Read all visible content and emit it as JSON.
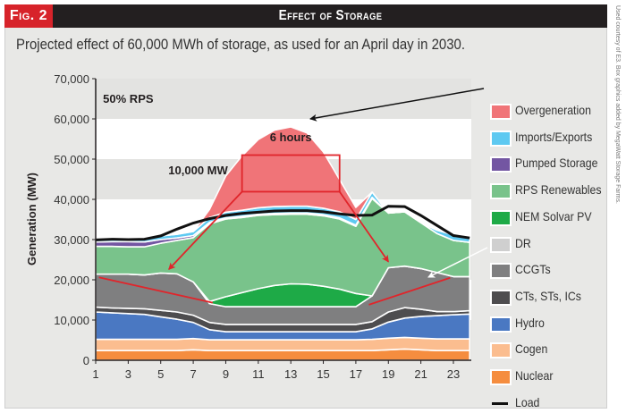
{
  "figure": {
    "tag": "Fig. 2",
    "title": "Effect of Storage",
    "subtitle": "Projected effect of 60,000 MWh of storage, as used for an April day in 2030.",
    "credit": "Used courtesy of E3. Box graphics added by MegaWatt Storage Farms."
  },
  "colors": {
    "header_bg": "#231f20",
    "tag_bg": "#d7232a",
    "panel_bg": "#e8e8e6",
    "annotation_red": "#e0252b"
  },
  "chart_data": {
    "type": "area",
    "stacked": true,
    "title": "Effect of Storage",
    "xlabel": "",
    "ylabel": "Generation (MW)",
    "x": [
      1,
      2,
      3,
      4,
      5,
      6,
      7,
      8,
      9,
      10,
      11,
      12,
      13,
      14,
      15,
      16,
      17,
      18,
      19,
      20,
      21,
      22,
      23,
      24
    ],
    "x_ticks": [
      1,
      3,
      5,
      7,
      9,
      11,
      13,
      15,
      17,
      19,
      21,
      23
    ],
    "y_ticks": [
      0,
      10000,
      20000,
      30000,
      40000,
      50000,
      60000,
      70000
    ],
    "y_tick_labels": [
      "0",
      "10,000",
      "20,000",
      "30,000",
      "40,000",
      "50,000",
      "60,000",
      "70,000"
    ],
    "xlim": [
      1,
      24
    ],
    "ylim": [
      0,
      70000
    ],
    "grid": "alternating horizontal bands every 10,000",
    "legend_position": "right",
    "series": [
      {
        "name": "Nuclear",
        "color": "#f58d3f",
        "values": [
          2400,
          2400,
          2400,
          2400,
          2400,
          2400,
          2600,
          2400,
          2400,
          2400,
          2400,
          2400,
          2400,
          2400,
          2400,
          2400,
          2400,
          2400,
          2600,
          2800,
          2600,
          2400,
          2400,
          2400
        ]
      },
      {
        "name": "Cogen",
        "color": "#fbbd8f",
        "values": [
          2800,
          2800,
          2800,
          2800,
          2800,
          2800,
          2800,
          2700,
          2700,
          2700,
          2700,
          2700,
          2700,
          2700,
          2700,
          2700,
          2700,
          2800,
          2900,
          2900,
          2900,
          2900,
          2900,
          2900
        ]
      },
      {
        "name": "Hydro",
        "color": "#4a78c2",
        "values": [
          6800,
          6600,
          6400,
          6200,
          5600,
          5000,
          4000,
          2500,
          2000,
          2000,
          2000,
          2000,
          2000,
          2000,
          2000,
          2000,
          2000,
          2600,
          4000,
          4800,
          5400,
          5800,
          6000,
          6200
        ]
      },
      {
        "name": "CTs, STs, ICs",
        "color": "#4e4d4f",
        "values": [
          1200,
          1200,
          1300,
          1400,
          1600,
          1800,
          1800,
          1800,
          1800,
          1800,
          1800,
          1800,
          1800,
          1800,
          1800,
          1800,
          1800,
          1800,
          2500,
          2600,
          1800,
          1000,
          800,
          800
        ]
      },
      {
        "name": "CCGTs",
        "color": "#7f7f80",
        "values": [
          8200,
          8400,
          8500,
          8400,
          9300,
          9500,
          8300,
          4700,
          4400,
          4400,
          4400,
          4400,
          4400,
          4400,
          4400,
          4400,
          4400,
          6400,
          11000,
          10300,
          10100,
          9700,
          8700,
          8500
        ]
      },
      {
        "name": "DR",
        "color": "#cfcfcf",
        "values": [
          0,
          0,
          0,
          0,
          0,
          0,
          0,
          0,
          0,
          0,
          0,
          0,
          0,
          0,
          0,
          0,
          0,
          0,
          0,
          0,
          0,
          0,
          0,
          0
        ]
      },
      {
        "name": "NEM Solvar PV",
        "color": "#1eaa47",
        "values": [
          0,
          0,
          0,
          0,
          0,
          0,
          0,
          500,
          2500,
          3500,
          4500,
          5300,
          5700,
          5600,
          5100,
          4400,
          3300,
          0,
          0,
          0,
          0,
          0,
          0,
          0
        ]
      },
      {
        "name": "RPS Renewables",
        "color": "#79c38b",
        "values": [
          6900,
          6900,
          6800,
          7000,
          7400,
          8300,
          11000,
          19300,
          19300,
          18700,
          18200,
          17600,
          17300,
          17400,
          17500,
          17400,
          16700,
          24200,
          13600,
          13500,
          11400,
          9700,
          9000,
          8500
        ]
      },
      {
        "name": "Pumped Storage",
        "color": "#7356a2",
        "values": [
          1100,
          1200,
          1300,
          1200,
          900,
          600,
          500,
          400,
          300,
          300,
          300,
          300,
          300,
          300,
          300,
          300,
          300,
          300,
          0,
          0,
          0,
          0,
          0,
          0
        ]
      },
      {
        "name": "Imports/Exports",
        "color": "#5ec9f1",
        "values": [
          800,
          700,
          700,
          800,
          900,
          900,
          1000,
          1200,
          1400,
          1500,
          1600,
          1700,
          1700,
          1700,
          1600,
          1500,
          1400,
          1300,
          0,
          0,
          0,
          800,
          1400,
          1600
        ]
      },
      {
        "name": "Overgeneration",
        "color": "#f07478",
        "values": [
          0,
          0,
          0,
          0,
          0,
          0,
          0,
          2000,
          9000,
          13500,
          17000,
          19000,
          19700,
          18200,
          14000,
          8000,
          3000,
          0,
          0,
          0,
          0,
          0,
          0,
          0
        ]
      }
    ],
    "load": {
      "name": "Load",
      "color": "#111111",
      "values": [
        29900,
        30100,
        30000,
        30100,
        30900,
        32600,
        34100,
        35200,
        36000,
        36500,
        36800,
        37100,
        37200,
        37200,
        36900,
        36400,
        36000,
        36100,
        38300,
        38200,
        36000,
        33500,
        31000,
        30400
      ]
    },
    "annotations": [
      {
        "text": "50% RPS",
        "x": 3,
        "y": 64000
      },
      {
        "text": "10,000 MW",
        "x": 7.3,
        "y": 46200
      },
      {
        "text": "6 hours",
        "x": 13,
        "y": 54400
      },
      {
        "type": "box",
        "x": [
          10,
          16
        ],
        "y": [
          41900,
          51000
        ],
        "label": "storage charge box"
      }
    ]
  },
  "legend": {
    "items": [
      {
        "label": "Overgeneration",
        "color": "#f07478"
      },
      {
        "label": "Imports/Exports",
        "color": "#5ec9f1"
      },
      {
        "label": "Pumped Storage",
        "color": "#7356a2"
      },
      {
        "label": "RPS Renewables",
        "color": "#79c38b"
      },
      {
        "label": "NEM Solvar PV",
        "color": "#1eaa47"
      },
      {
        "label": "DR",
        "color": "#cfcfcf"
      },
      {
        "label": "CCGTs",
        "color": "#7f7f80"
      },
      {
        "label": "CTs, STs, ICs",
        "color": "#4e4d4f"
      },
      {
        "label": "Hydro",
        "color": "#4a78c2"
      },
      {
        "label": "Cogen",
        "color": "#fbbd8f"
      },
      {
        "label": "Nuclear",
        "color": "#f58d3f"
      },
      {
        "label": "Load",
        "color": "#111111",
        "line": true
      }
    ]
  }
}
